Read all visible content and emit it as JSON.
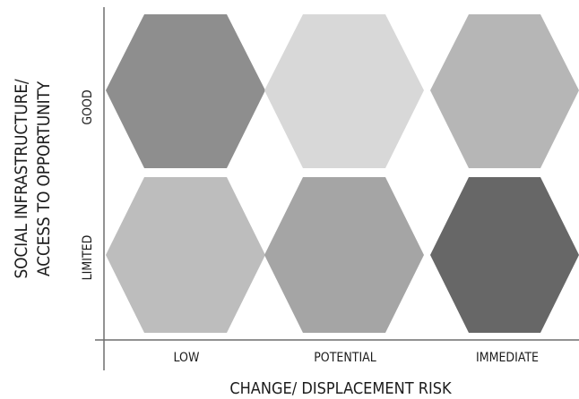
{
  "diagram": {
    "y_axis_title_line1": "SOCIAL INFRASTRUCTURE/",
    "y_axis_title_line2": "ACCESS TO OPPORTUNITY",
    "x_axis_title": "CHANGE/ DISPLACEMENT RISK",
    "rows": [
      {
        "label": "GOOD"
      },
      {
        "label": "LIMITED"
      }
    ],
    "columns": [
      {
        "label": "LOW"
      },
      {
        "label": "POTENTIAL"
      },
      {
        "label": "IMMEDIATE"
      }
    ],
    "cells": [
      {
        "row": "GOOD",
        "column": "LOW",
        "color": "#8e8e8e"
      },
      {
        "row": "GOOD",
        "column": "POTENTIAL",
        "color": "#d8d8d8"
      },
      {
        "row": "GOOD",
        "column": "IMMEDIATE",
        "color": "#b6b6b6"
      },
      {
        "row": "LIMITED",
        "column": "LOW",
        "color": "#bdbdbd"
      },
      {
        "row": "LIMITED",
        "column": "POTENTIAL",
        "color": "#a5a5a5"
      },
      {
        "row": "LIMITED",
        "column": "IMMEDIATE",
        "color": "#676767"
      }
    ]
  }
}
